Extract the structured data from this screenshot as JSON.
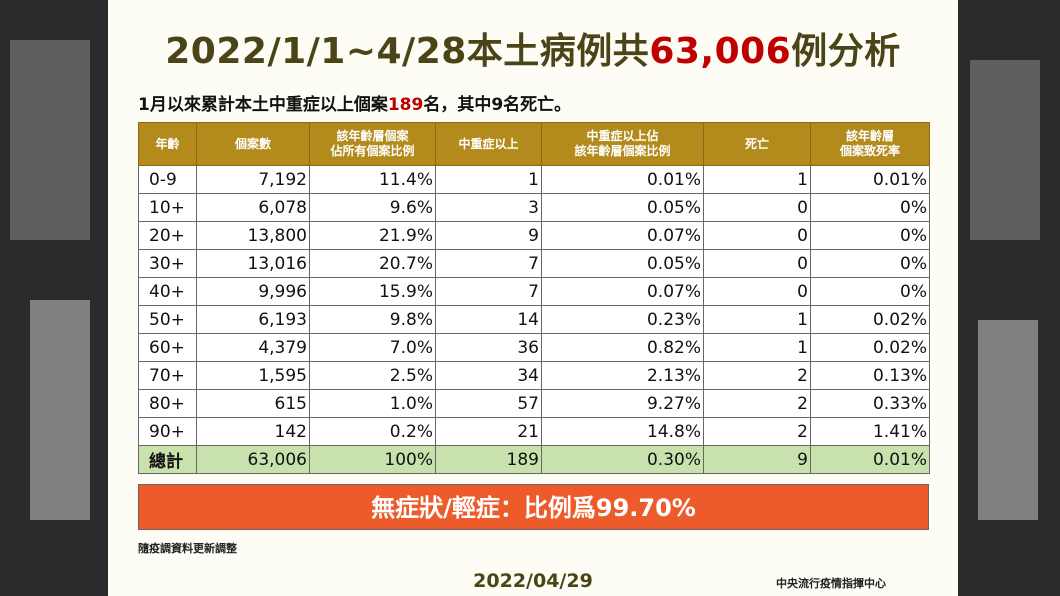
{
  "title_prefix": "2022/1/1~4/28本土病例共",
  "title_number": "63,006",
  "title_suffix": "例分析",
  "subtitle_prefix": "1月以來累計本土中重症以上個案",
  "subtitle_number": "189",
  "subtitle_suffix": "名，其中9名死亡。",
  "table": {
    "headers": [
      "年齡",
      "個案數",
      "該年齡層個案\n佔所有個案比例",
      "中重症以上",
      "中重症以上佔\n該年齡層個案比例",
      "死亡",
      "該年齡層\n個案致死率"
    ],
    "rows": [
      [
        "0-9",
        "7,192",
        "11.4%",
        "1",
        "0.01%",
        "1",
        "0.01%"
      ],
      [
        "10+",
        "6,078",
        "9.6%",
        "3",
        "0.05%",
        "0",
        "0%"
      ],
      [
        "20+",
        "13,800",
        "21.9%",
        "9",
        "0.07%",
        "0",
        "0%"
      ],
      [
        "30+",
        "13,016",
        "20.7%",
        "7",
        "0.05%",
        "0",
        "0%"
      ],
      [
        "40+",
        "9,996",
        "15.9%",
        "7",
        "0.07%",
        "0",
        "0%"
      ],
      [
        "50+",
        "6,193",
        "9.8%",
        "14",
        "0.23%",
        "1",
        "0.02%"
      ],
      [
        "60+",
        "4,379",
        "7.0%",
        "36",
        "0.82%",
        "1",
        "0.02%"
      ],
      [
        "70+",
        "1,595",
        "2.5%",
        "34",
        "2.13%",
        "2",
        "0.13%"
      ],
      [
        "80+",
        "615",
        "1.0%",
        "57",
        "9.27%",
        "2",
        "0.33%"
      ],
      [
        "90+",
        "142",
        "0.2%",
        "21",
        "14.8%",
        "2",
        "1.41%"
      ]
    ],
    "total": [
      "總計",
      "63,006",
      "100%",
      "189",
      "0.30%",
      "9",
      "0.01%"
    ]
  },
  "banner": "無症狀/輕症：比例爲99.70%",
  "note": "隨疫調資料更新調整",
  "date": "2022/04/29",
  "org": "中央流行疫情指揮中心",
  "colors": {
    "header_bg": "#b38b1d",
    "total_row_bg": "#c9e2ad",
    "banner_bg": "#ee5b2a",
    "highlight_red": "#c00000",
    "title_color": "#4a4416"
  }
}
